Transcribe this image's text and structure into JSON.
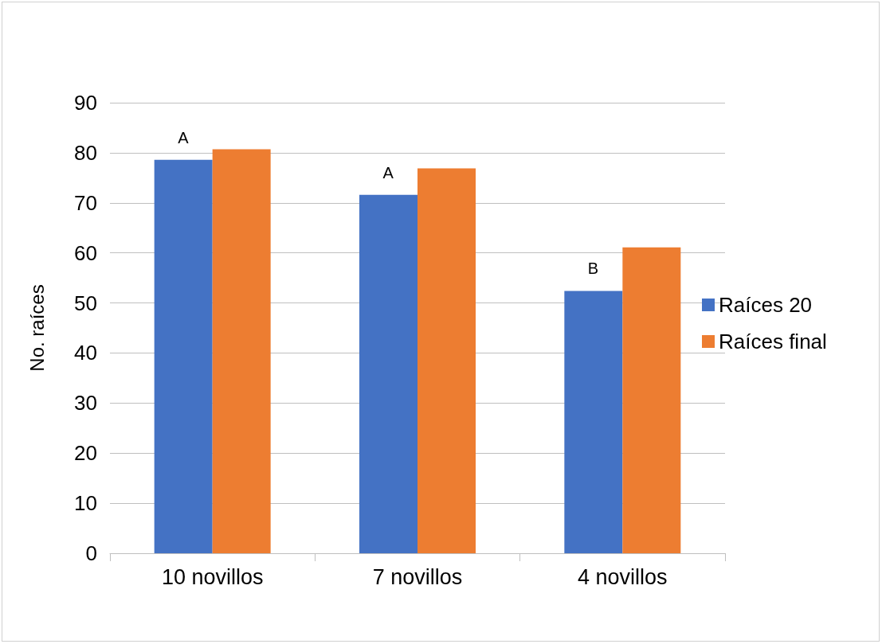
{
  "chart_data": {
    "type": "bar",
    "ylabel": "No. raíces",
    "categories": [
      "10 novillos",
      "7 novillos",
      "4 novillos"
    ],
    "series": [
      {
        "name": "Raíces 20",
        "color": "#4472c4",
        "values": [
          78.6,
          71.6,
          52.4
        ]
      },
      {
        "name": "Raíces final",
        "color": "#ed7d31",
        "values": [
          80.7,
          76.9,
          61.1
        ]
      }
    ],
    "ylim": [
      0,
      90
    ],
    "yticks": [
      0,
      10,
      20,
      30,
      40,
      50,
      60,
      70,
      80,
      90
    ],
    "grid": "y",
    "legend": "right",
    "annotations": [
      "A",
      "A",
      "B"
    ]
  }
}
